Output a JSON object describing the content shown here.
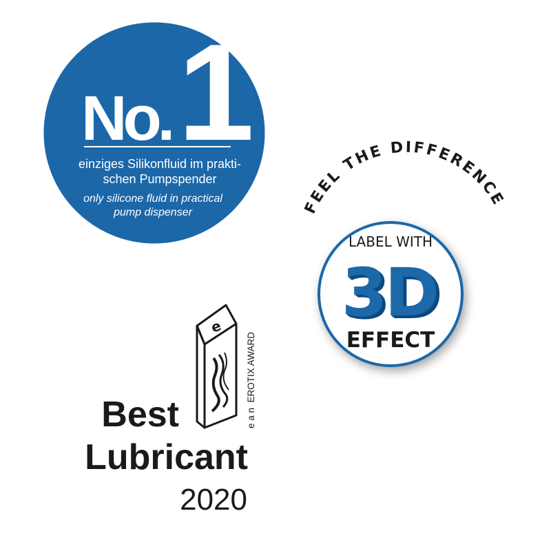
{
  "colors": {
    "blue": "#1b67a8",
    "dark_blue": "#0f4a80",
    "black": "#1a1a1a"
  },
  "no1_badge": {
    "no": "No.",
    "one": "1",
    "line_de_1": "einziges Silikonfluid im prakti-",
    "line_de_2": "schen Pumpspender",
    "line_en_1": "only silicone fluid in practical",
    "line_en_2": "pump dispenser"
  },
  "effect_badge": {
    "arc_text": "FEEL THE DIFFERENCE",
    "label_with": "LABEL WITH",
    "three_d": "3D",
    "effect": "EFFECT"
  },
  "award": {
    "trophy_letter": "e",
    "vertical_text": "e a n  EROTIX AWARD",
    "best": "Best",
    "lubricant": "Lubricant",
    "year": "2020"
  }
}
